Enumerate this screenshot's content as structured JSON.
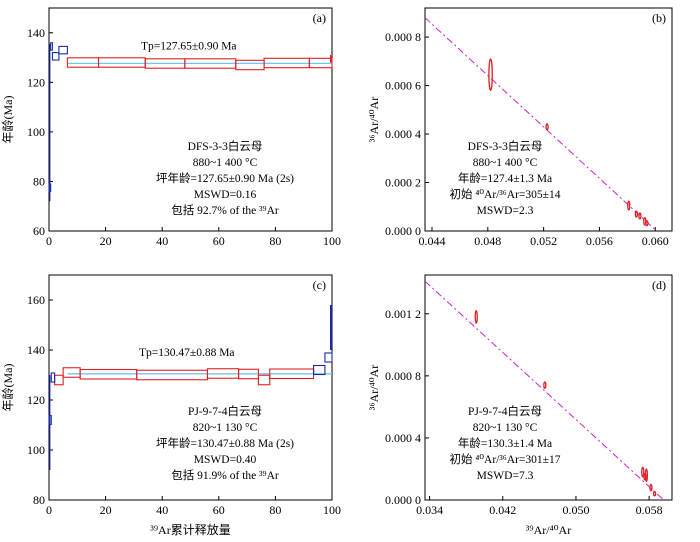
{
  "chart_data": [
    {
      "id": "a",
      "type": "step",
      "panel_label": "(a)",
      "ylabel": "年龄(Ma)",
      "xlim": [
        0,
        100
      ],
      "ylim": [
        60,
        150
      ],
      "xticks": [
        0,
        20,
        40,
        60,
        80,
        100
      ],
      "yticks": [
        60,
        80,
        100,
        120,
        140
      ],
      "plateau_label": "Tp=127.65±0.90 Ma",
      "plateau_value": 127.65,
      "annotations": [
        "DFS-3-3白云母",
        "880~1 400 °C",
        "坪年龄=127.65±0.90 Ma (2s)",
        "MSWD=0.16",
        "包括 92.7% of the ³⁹Ar"
      ],
      "blue_steps": [
        [
          0,
          0.6,
          77.5
        ],
        [
          0.6,
          1.2,
          134.5
        ],
        [
          1.2,
          3.5,
          130.5
        ],
        [
          3.5,
          6.5,
          133.0
        ]
      ],
      "red_steps": [
        [
          6.5,
          17.5,
          128.0
        ],
        [
          17.5,
          34.0,
          128.0
        ],
        [
          34.0,
          48.0,
          127.6
        ],
        [
          48.0,
          66.0,
          127.6
        ],
        [
          66.0,
          76.0,
          127.0
        ],
        [
          76.0,
          92.0,
          127.8
        ],
        [
          92.0,
          100.0,
          127.8
        ]
      ],
      "red_halfwidth": 1.9,
      "blue_halfwidth": 1.5,
      "end_spike": [
        100,
        128.0,
        131.0
      ]
    },
    {
      "id": "b",
      "type": "isochron",
      "panel_label": "(b)",
      "xlim": [
        0.0435,
        0.0612
      ],
      "ylim": [
        0,
        0.00092
      ],
      "xticks": [
        0.044,
        0.048,
        0.052,
        0.056,
        0.06
      ],
      "yticks": [
        0,
        0.0002,
        0.0004,
        0.0006,
        0.0008
      ],
      "ytick_labels": [
        "0.000 0",
        "0.000 2",
        "0.000 4",
        "0.000 6",
        "0.000 8"
      ],
      "ylabel": "³⁶Ar/⁴⁰Ar",
      "fit_line": [
        [
          0.0435,
          0.00088
        ],
        [
          0.0601,
          0.0
        ]
      ],
      "annotations": [
        "DFS-3-3白云母",
        "880~1 400 °C",
        "年龄=127.4±1.3 Ma",
        "初始 ⁴⁰Ar/³⁶Ar=305±14",
        "MSWD=2.3"
      ],
      "ellipses": [
        {
          "x": 0.0482,
          "y": 0.000645,
          "rx": 0.00012,
          "ry": 6.5e-05
        },
        {
          "x": 0.05225,
          "y": 0.00043,
          "rx": 2e-05,
          "ry": 1.2e-05
        },
        {
          "x": 0.0581,
          "y": 0.000105,
          "rx": 2e-05,
          "ry": 1.8e-05
        },
        {
          "x": 0.05865,
          "y": 7e-05,
          "rx": 2e-05,
          "ry": 1.2e-05
        },
        {
          "x": 0.0589,
          "y": 6.2e-05,
          "rx": 2e-05,
          "ry": 1.2e-05
        },
        {
          "x": 0.05925,
          "y": 4e-05,
          "rx": 2e-05,
          "ry": 1.5e-05
        },
        {
          "x": 0.0594,
          "y": 3.2e-05,
          "rx": 2e-05,
          "ry": 1e-05
        }
      ]
    },
    {
      "id": "c",
      "type": "step",
      "panel_label": "(c)",
      "ylabel": "年龄(Ma)",
      "xlabel": "³⁹Ar累计释放量",
      "xlim": [
        0,
        100
      ],
      "ylim": [
        80,
        170
      ],
      "xticks": [
        0,
        20,
        40,
        60,
        80,
        100
      ],
      "yticks": [
        80,
        100,
        120,
        140,
        160
      ],
      "plateau_label": "Tp=130.47±0.88 Ma",
      "plateau_value": 130.47,
      "annotations": [
        "PJ-9-7-4白云母",
        "820~1 130 °C",
        "坪年龄=130.47±0.88 Ma (2s)",
        "MSWD=0.40",
        "包括 91.9% of the ³⁹Ar"
      ],
      "blue_steps": [
        [
          0,
          0.8,
          112.0
        ],
        [
          0.8,
          2.0,
          129.0
        ],
        [
          93.5,
          97.5,
          132.0
        ],
        [
          97.5,
          100.0,
          137.0
        ]
      ],
      "red_steps": [
        [
          2.0,
          5.0,
          128.0
        ],
        [
          5.0,
          11.0,
          131.0
        ],
        [
          11.0,
          31.0,
          130.3
        ],
        [
          31.0,
          56.0,
          130.0
        ],
        [
          56.0,
          67.0,
          130.6
        ],
        [
          67.0,
          74.0,
          130.4
        ],
        [
          74.0,
          78.0,
          128.0
        ],
        [
          78.0,
          93.5,
          130.5
        ]
      ],
      "red_halfwidth": 1.9,
      "blue_halfwidth": 1.8,
      "end_spike": [
        100,
        140.0,
        158.0
      ]
    },
    {
      "id": "d",
      "type": "isochron",
      "panel_label": "(d)",
      "xlim": [
        0.0335,
        0.0605
      ],
      "ylim": [
        0,
        0.00145
      ],
      "xticks": [
        0.034,
        0.042,
        0.05,
        0.058
      ],
      "yticks": [
        0,
        0.0004,
        0.0008,
        0.0012
      ],
      "ytick_labels": [
        "0.000 0",
        "0.000 4",
        "0.000 8",
        "0.001 2"
      ],
      "ylabel": "³⁶Ar/⁴⁰Ar",
      "xlabel": "³⁹Ar/⁴⁰Ar",
      "fit_line": [
        [
          0.0335,
          0.00141
        ],
        [
          0.0596,
          0.0
        ]
      ],
      "annotations": [
        "PJ-9-7-4白云母",
        "820~1 130 °C",
        "年龄=130.3±1.4 Ma",
        "初始 ⁴⁰Ar/³⁶Ar=301±17",
        "MSWD=7.3"
      ],
      "ellipses": [
        {
          "x": 0.0391,
          "y": 0.00118,
          "rx": 3e-05,
          "ry": 4e-05
        },
        {
          "x": 0.0466,
          "y": 0.00074,
          "rx": 3e-05,
          "ry": 2e-05
        },
        {
          "x": 0.0573,
          "y": 0.00018,
          "rx": 3e-05,
          "ry": 3e-05
        },
        {
          "x": 0.05755,
          "y": 0.00015,
          "rx": 3e-05,
          "ry": 2e-05
        },
        {
          "x": 0.0577,
          "y": 0.00016,
          "rx": 2e-05,
          "ry": 4e-05
        },
        {
          "x": 0.0582,
          "y": 8e-05,
          "rx": 3e-05,
          "ry": 2e-05
        },
        {
          "x": 0.0586,
          "y": 4e-05,
          "rx": 2e-05,
          "ry": 1e-05
        }
      ]
    }
  ]
}
